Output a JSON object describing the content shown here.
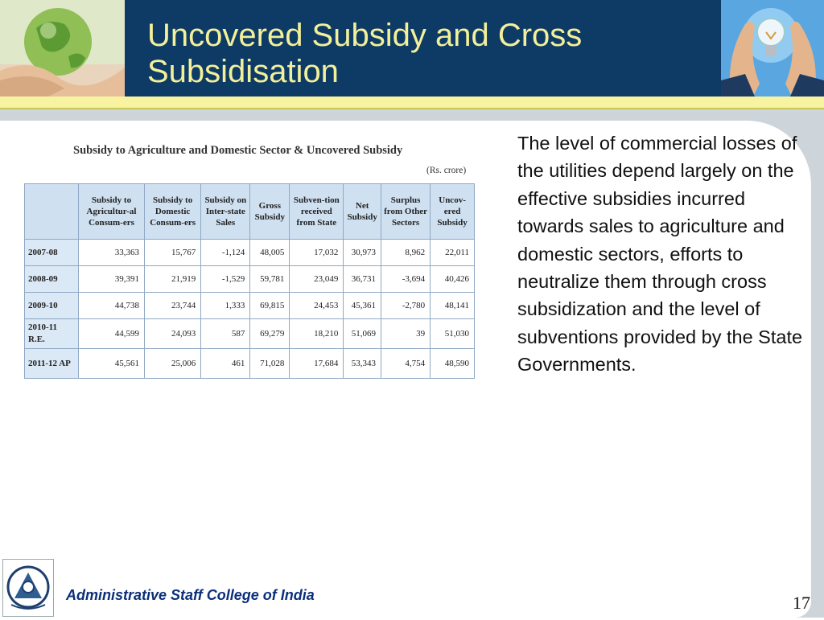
{
  "slide": {
    "title": "Uncovered Subsidy and Cross Subsidisation",
    "page_number": "17"
  },
  "table": {
    "title": "Subsidy to Agriculture and Domestic Sector & Uncovered Subsidy",
    "unit": "(Rs. crore)",
    "headers": [
      "Subsidy to Agricultur-al Consum-ers",
      "Subsidy to Domestic Consum-ers",
      "Subsidy on Inter-state Sales",
      "Gross Subsidy",
      "Subven-tion received from State",
      "Net Subsidy",
      "Surplus from Other Sectors",
      "Uncov-ered Subsidy"
    ],
    "rows": [
      {
        "year": "2007-08",
        "values": [
          "33,363",
          "15,767",
          "-1,124",
          "48,005",
          "17,032",
          "30,973",
          "8,962",
          "22,011"
        ]
      },
      {
        "year": "2008-09",
        "values": [
          "39,391",
          "21,919",
          "-1,529",
          "59,781",
          "23,049",
          "36,731",
          "-3,694",
          "40,426"
        ]
      },
      {
        "year": "2009-10",
        "values": [
          "44,738",
          "23,744",
          "1,333",
          "69,815",
          "24,453",
          "45,361",
          "-2,780",
          "48,141"
        ]
      },
      {
        "year": "2010-11 R.E.",
        "values": [
          "44,599",
          "24,093",
          "587",
          "69,279",
          "18,210",
          "51,069",
          "39",
          "51,030"
        ]
      },
      {
        "year": "2011-12 AP",
        "values": [
          "45,561",
          "25,006",
          "461",
          "71,028",
          "17,684",
          "53,343",
          "4,754",
          "48,590"
        ]
      }
    ]
  },
  "body_text": "The level of commercial losses of the utilities depend largely on the effective subsidies incurred towards sales to agriculture and domestic sectors, efforts to neutralize them through cross subsidization and the level of subventions provided by the State Governments.",
  "footer": {
    "institution": "Administrative Staff College of India"
  },
  "images": {
    "header_left": "hands-holding-globe",
    "header_right": "hands-around-light-bulb",
    "footer_logo": "college-emblem"
  },
  "colors": {
    "header_bg": "#0d3b66",
    "title_text": "#f4f09a",
    "accent_bar": "#f7f3a0",
    "table_header_bg": "#cfe0f1",
    "footer_text": "#0b2f7a"
  }
}
